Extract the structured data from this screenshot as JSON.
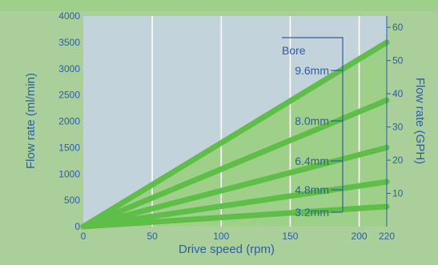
{
  "title": "",
  "chart_data": {
    "type": "area",
    "xlabel": "Drive speed (rpm)",
    "ylabel": "Flow rate (ml/min)",
    "ylabel_right": "Flow  rate (GPH)",
    "xlim": [
      0,
      220
    ],
    "ylim": [
      0,
      4000
    ],
    "ylim_right": [
      0,
      63.4
    ],
    "x_ticks": [
      0,
      50,
      100,
      150,
      200,
      220
    ],
    "y_ticks": [
      0,
      500,
      1000,
      1500,
      2000,
      2500,
      3000,
      3500,
      4000
    ],
    "y_ticks_right": [
      10,
      20,
      30,
      40,
      50,
      60
    ],
    "x_gridlines": [
      50,
      100,
      150,
      200
    ],
    "legend_title": "Bore",
    "series": [
      {
        "name": "9.6mm",
        "x": [
          0,
          220
        ],
        "y": [
          0,
          3500
        ]
      },
      {
        "name": "8.0mm",
        "x": [
          0,
          220
        ],
        "y": [
          0,
          2400
        ]
      },
      {
        "name": "6.4mm",
        "x": [
          0,
          220
        ],
        "y": [
          0,
          1500
        ]
      },
      {
        "name": "4.8mm",
        "x": [
          0,
          220
        ],
        "y": [
          0,
          850
        ]
      },
      {
        "name": "3.2mm",
        "x": [
          0,
          220
        ],
        "y": [
          0,
          380
        ]
      }
    ],
    "colors": {
      "plot_bg": "#c3d3dc",
      "fill": "#9fd08a",
      "band": "#5fbe47",
      "axis_text": "#2a5fa8",
      "frame": "#aacf9b"
    }
  }
}
